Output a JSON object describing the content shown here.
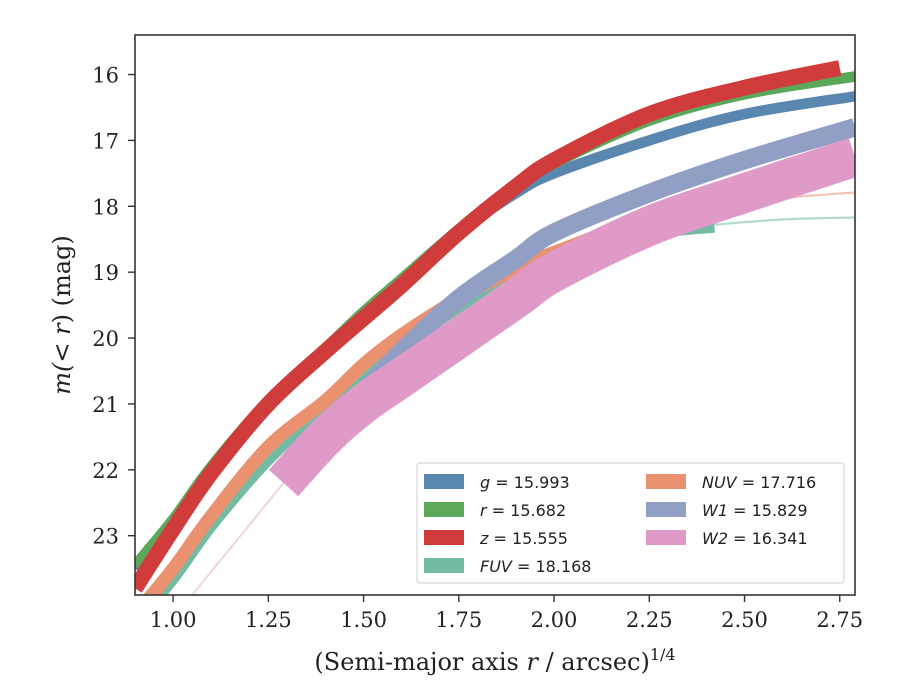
{
  "chart_data": {
    "type": "line",
    "title": "",
    "xlabel_main": "(Semi-major axis ",
    "xlabel_var": "r",
    "xlabel_after": " / arcsec)",
    "xlabel_sup": "1/4",
    "ylabel_pre": "m(",
    "ylabel_var": "< r",
    "ylabel_post": ") (mag)",
    "xlim": [
      0.9,
      2.79
    ],
    "ylim": [
      23.9,
      15.4
    ],
    "y_inverted": true,
    "xticks": [
      "1.00",
      "1.25",
      "1.50",
      "1.75",
      "2.00",
      "2.25",
      "2.50",
      "2.75"
    ],
    "xtick_values": [
      1.0,
      1.25,
      1.5,
      1.75,
      2.0,
      2.25,
      2.5,
      2.75
    ],
    "yticks": [
      "16",
      "17",
      "18",
      "19",
      "20",
      "21",
      "22",
      "23"
    ],
    "ytick_values": [
      16,
      17,
      18,
      19,
      20,
      21,
      22,
      23
    ],
    "grid": false,
    "legend_position": "lower-right",
    "series": [
      {
        "name": "g = 15.993",
        "legend_var": "g",
        "legend_value": "15.993",
        "color": "#5a87b0",
        "band": [
          0.08
        ],
        "x": [
          0.9,
          1.0,
          1.1,
          1.25,
          1.4,
          1.5,
          1.6,
          1.75,
          1.9,
          2.0,
          2.25,
          2.5,
          2.79
        ],
        "y": [
          23.5,
          22.8,
          22.0,
          21.0,
          20.2,
          19.7,
          19.2,
          18.4,
          17.8,
          17.5,
          17.0,
          16.6,
          16.33
        ],
        "fade_from_x": null
      },
      {
        "name": "r = 15.682",
        "legend_var": "r",
        "legend_value": "15.682",
        "color": "#5ba85b",
        "band": [
          0.08
        ],
        "x": [
          0.9,
          1.0,
          1.1,
          1.25,
          1.4,
          1.5,
          1.6,
          1.75,
          1.9,
          2.0,
          2.25,
          2.5,
          2.79
        ],
        "y": [
          23.45,
          22.75,
          21.95,
          20.95,
          20.15,
          19.6,
          19.1,
          18.35,
          17.7,
          17.35,
          16.7,
          16.3,
          16.03
        ],
        "fade_from_x": null
      },
      {
        "name": "z = 15.555",
        "legend_var": "z",
        "legend_value": "15.555",
        "color": "#d03c3c",
        "band": [
          0.12
        ],
        "x": [
          0.9,
          1.0,
          1.1,
          1.25,
          1.4,
          1.5,
          1.6,
          1.75,
          1.9,
          2.0,
          2.25,
          2.5,
          2.75
        ],
        "y": [
          23.8,
          22.9,
          22.05,
          21.0,
          20.2,
          19.7,
          19.2,
          18.4,
          17.7,
          17.3,
          16.6,
          16.2,
          15.9
        ],
        "fade_from_x": null
      },
      {
        "name": "FUV = 18.168",
        "legend_var": "FUV",
        "legend_value": "18.168",
        "color": "#74bba4",
        "band": [
          0.12
        ],
        "x": [
          0.9,
          1.0,
          1.1,
          1.25,
          1.4,
          1.5,
          1.6,
          1.75,
          1.9,
          2.0,
          2.25,
          2.42,
          2.6,
          2.79
        ],
        "y": [
          24.3,
          23.6,
          22.8,
          21.8,
          21.0,
          20.6,
          20.1,
          19.5,
          19.05,
          18.8,
          18.4,
          18.28,
          18.2,
          18.17
        ],
        "fade_from_x": 2.42
      },
      {
        "name": "NUV = 17.716",
        "legend_var": "NUV",
        "legend_value": "17.716",
        "color": "#ea9270",
        "band": [
          0.1
        ],
        "x": [
          0.9,
          1.0,
          1.1,
          1.25,
          1.4,
          1.5,
          1.6,
          1.75,
          1.9,
          2.0,
          2.25,
          2.54,
          2.65,
          2.79
        ],
        "y": [
          24.2,
          23.5,
          22.7,
          21.65,
          20.95,
          20.4,
          19.95,
          19.4,
          18.95,
          18.7,
          18.2,
          17.92,
          17.85,
          17.79
        ],
        "fade_from_x": 2.54
      },
      {
        "name": "W1 = 15.829",
        "legend_var": "W1",
        "legend_value": "15.829",
        "color": "#929fc4",
        "band": [
          0.14
        ],
        "x": [
          1.29,
          1.4,
          1.5,
          1.6,
          1.75,
          1.9,
          2.0,
          2.25,
          2.5,
          2.79
        ],
        "y": [
          22.1,
          21.3,
          20.8,
          20.2,
          19.4,
          18.8,
          18.4,
          17.8,
          17.3,
          16.8
        ],
        "fade_from_x": null
      },
      {
        "name": "W2 = 16.341",
        "legend_var": "W2",
        "legend_value": "16.341",
        "color": "#df9ac8",
        "band": [
          0.3
        ],
        "x": [
          1.29,
          1.4,
          1.5,
          1.6,
          1.75,
          1.9,
          2.0,
          2.25,
          2.5,
          2.79
        ],
        "y": [
          22.2,
          21.5,
          21.0,
          20.6,
          20.0,
          19.4,
          19.0,
          18.3,
          17.8,
          17.25
        ],
        "fade_from_x": null,
        "faint_lead_x": [
          1.05,
          1.29
        ],
        "faint_lead_y": [
          23.9,
          22.2
        ]
      }
    ]
  }
}
